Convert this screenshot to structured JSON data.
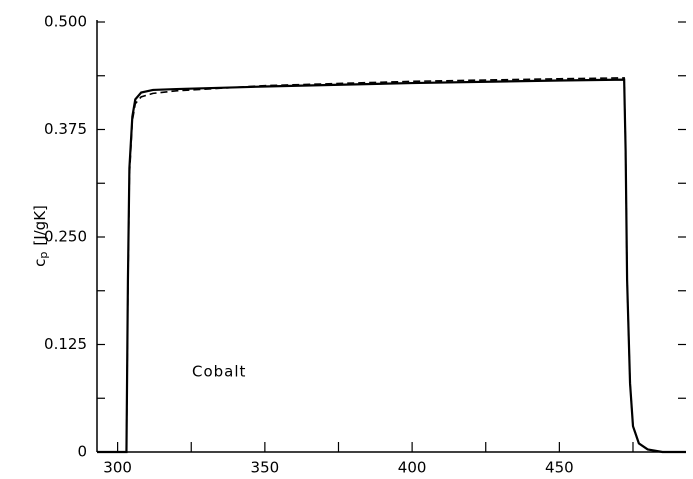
{
  "chart_data": {
    "type": "line",
    "ylabel": "c",
    "ylabel_sub": "p",
    "ylabel_unit": "[J/gK]",
    "annotation": "Cobalt",
    "x": [
      293,
      303,
      303.5,
      304,
      305,
      306,
      308,
      312,
      320,
      350,
      400,
      450,
      472,
      472.5,
      473,
      474,
      475,
      477,
      480,
      485,
      493
    ],
    "series": [
      {
        "color": "#000000",
        "dash": false,
        "values": [
          0,
          0,
          0.2,
          0.33,
          0.39,
          0.41,
          0.418,
          0.421,
          0.422,
          0.425,
          0.429,
          0.432,
          0.433,
          0.35,
          0.2,
          0.08,
          0.03,
          0.01,
          0.003,
          0,
          0
        ]
      },
      {
        "color": "#000000",
        "dash": true,
        "values": [
          0,
          0,
          0.19,
          0.32,
          0.385,
          0.405,
          0.413,
          0.417,
          0.42,
          0.426,
          0.431,
          0.434,
          0.435,
          0.35,
          0.2,
          0.08,
          0.03,
          0.01,
          0.003,
          0,
          0
        ]
      }
    ],
    "xlim": [
      293,
      493
    ],
    "xticks": [
      300,
      350,
      400,
      450
    ],
    "xminor_ticks": [
      325,
      375,
      425,
      475
    ],
    "ylim": [
      0,
      0.5
    ],
    "yticks": [
      0,
      {
        "value": 0.125,
        "label": "0.125"
      },
      {
        "value": 0.25,
        "label": "0.250"
      },
      {
        "value": 0.375,
        "label": "0.375"
      },
      {
        "value": 0.5,
        "label": "0.500"
      }
    ],
    "yminor_ticks": [
      0.0625,
      0.1875,
      0.3125,
      0.4375
    ]
  }
}
